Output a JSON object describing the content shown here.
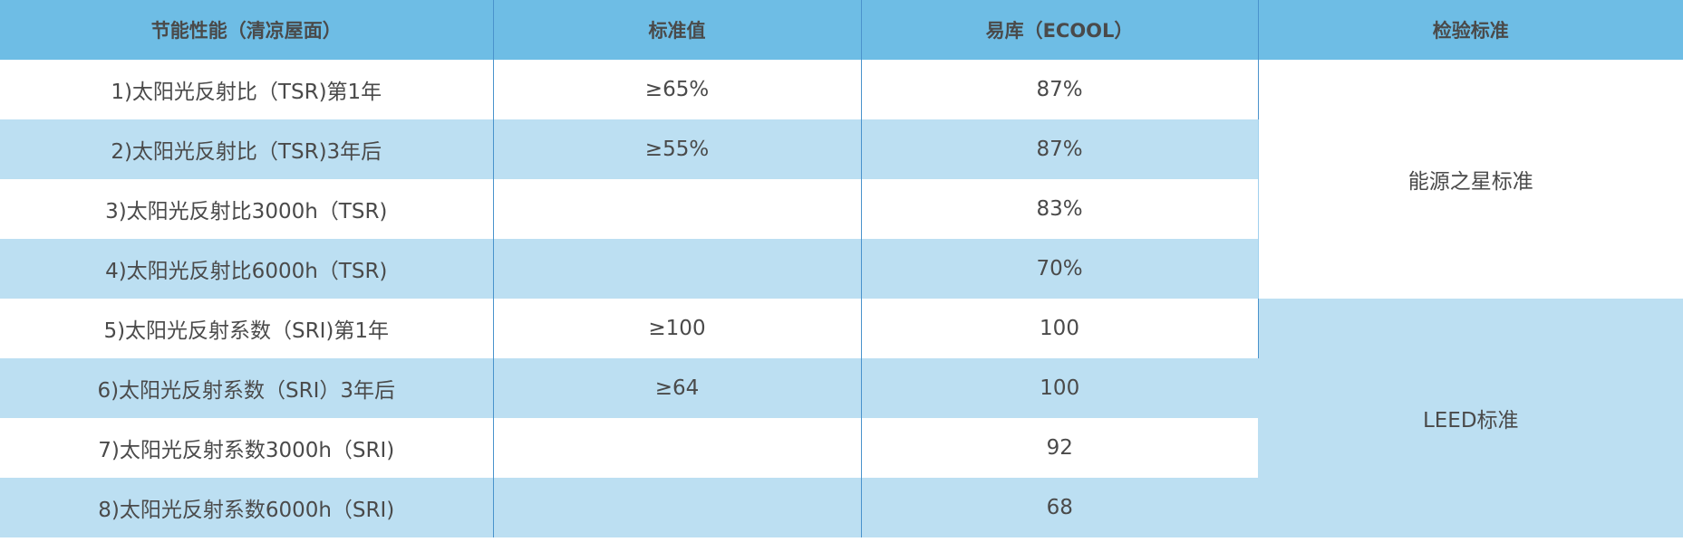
{
  "table": {
    "headers": [
      "节能性能（清凉屋面）",
      "标准值",
      "易库（ECOOL）",
      "检验标准"
    ],
    "rows": [
      {
        "item": "1)太阳光反射比（TSR)第1年",
        "standard": "≥65%",
        "value": "87%"
      },
      {
        "item": "2)太阳光反射比（TSR)3年后",
        "standard": "≥55%",
        "value": "87%"
      },
      {
        "item": "3)太阳光反射比3000h（TSR)",
        "standard": "",
        "value": "83%"
      },
      {
        "item": "4)太阳光反射比6000h（TSR)",
        "standard": "",
        "value": "70%"
      },
      {
        "item": "5)太阳光反射系数（SRI)第1年",
        "standard": "≥100",
        "value": "100"
      },
      {
        "item": "6)太阳光反射系数（SRI）3年后",
        "standard": "≥64",
        "value": "100"
      },
      {
        "item": "7)太阳光反射系数3000h（SRI)",
        "standard": "",
        "value": "92"
      },
      {
        "item": "8)太阳光反射系数6000h（SRI)",
        "standard": "",
        "value": "68"
      }
    ],
    "test_standards": [
      "能源之星标准",
      "LEED标准"
    ]
  },
  "colors": {
    "header_bg": "#6ebde5",
    "stripe_bg": "#bcdff2",
    "divider": "#4a93cc",
    "text": "#4a4a4a"
  }
}
